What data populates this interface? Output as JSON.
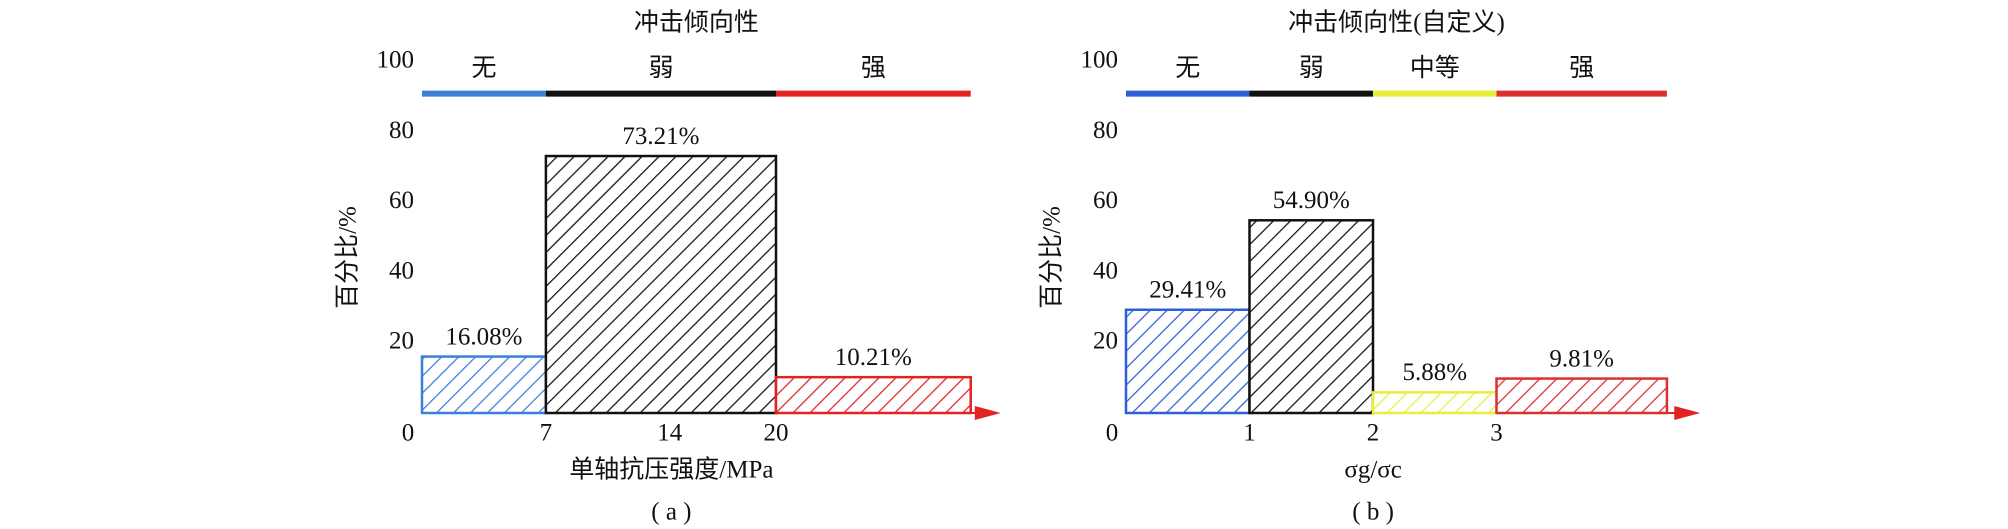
{
  "chart_data": [
    {
      "type": "histogram",
      "title": "冲击倾向性",
      "xlabel": "单轴抗压强度/MPa",
      "ylabel": "百分比/%",
      "caption": "( a )",
      "bins": [
        0,
        7,
        20,
        31
      ],
      "values": [
        16.08,
        73.21,
        10.21
      ],
      "value_labels": [
        "16.08%",
        "73.21%",
        "10.21%"
      ],
      "colors": [
        "#3b7fd9",
        "#111111",
        "#e32222"
      ],
      "bands": [
        "无",
        "弱",
        "强"
      ],
      "xlim": [
        0,
        32.7
      ],
      "xticks": [
        0,
        7,
        14,
        20
      ],
      "ylim": [
        0,
        100
      ],
      "yticks": [
        20,
        40,
        60,
        80,
        100
      ],
      "axis_color": "#e32222"
    },
    {
      "type": "histogram",
      "title": "冲击倾向性(自定义)",
      "xlabel": "σg/σc",
      "ylabel": "百分比/%",
      "caption": "( b )",
      "bins": [
        0,
        1,
        2,
        3,
        4.38
      ],
      "values": [
        29.41,
        54.9,
        5.88,
        9.81
      ],
      "value_labels": [
        "29.41%",
        "54.90%",
        "5.88%",
        "9.81%"
      ],
      "colors": [
        "#2f5fd6",
        "#111111",
        "#e6ef3a",
        "#d93030"
      ],
      "bands": [
        "无",
        "弱",
        "中等",
        "强"
      ],
      "xlim": [
        0,
        4.65
      ],
      "xticks": [
        0,
        1,
        2,
        3
      ],
      "ylim": [
        0,
        100
      ],
      "yticks": [
        20,
        40,
        60,
        80,
        100
      ],
      "axis_color": "#e32222"
    }
  ]
}
